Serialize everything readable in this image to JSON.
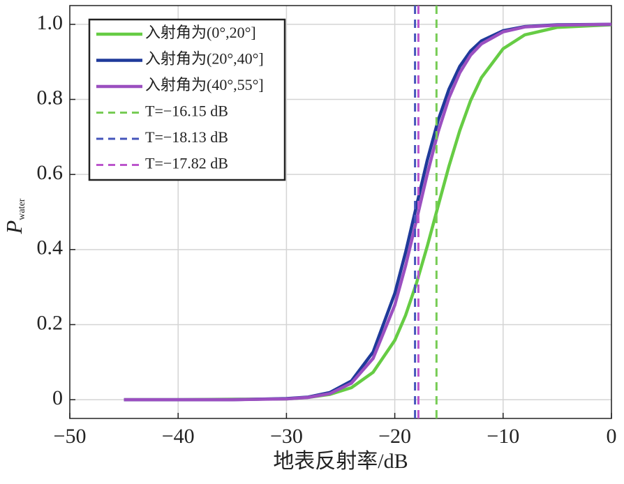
{
  "chart_data": {
    "type": "line",
    "xlabel": "地表反射率/dB",
    "ylabel": "P",
    "ylabel_subscript": "water",
    "x": [
      -45,
      -40,
      -35,
      -30,
      -28,
      -26,
      -24,
      -22,
      -20,
      -19,
      -18,
      -17,
      -16,
      -15,
      -14,
      -13,
      -12,
      -10,
      -8,
      -5,
      0
    ],
    "series": [
      {
        "name": "入射角为(0°,20°]",
        "color": "#66cc44",
        "values": [
          0,
          0,
          0.001,
          0.002,
          0.006,
          0.014,
          0.032,
          0.073,
          0.158,
          0.225,
          0.31,
          0.409,
          0.516,
          0.622,
          0.717,
          0.797,
          0.858,
          0.935,
          0.972,
          0.992,
          0.999
        ]
      },
      {
        "name": "入射角为(20°,40°]",
        "color": "#1f3a9a",
        "values": [
          0,
          0,
          0,
          0.003,
          0.007,
          0.019,
          0.05,
          0.127,
          0.283,
          0.393,
          0.516,
          0.638,
          0.744,
          0.827,
          0.888,
          0.929,
          0.956,
          0.983,
          0.994,
          0.999,
          1
        ]
      },
      {
        "name": "入射角为(40°,55°]",
        "color": "#9b4fc0",
        "values": [
          0,
          0,
          0,
          0.002,
          0.006,
          0.016,
          0.044,
          0.11,
          0.252,
          0.357,
          0.478,
          0.601,
          0.713,
          0.804,
          0.871,
          0.918,
          0.948,
          0.98,
          0.993,
          0.998,
          1
        ]
      }
    ],
    "vlines": [
      {
        "name": "T=−16.15 dB",
        "color": "#77cc55",
        "x": -16.15
      },
      {
        "name": "T=−18.13 dB",
        "color": "#4455bb",
        "x": -18.13
      },
      {
        "name": "T=−17.82 dB",
        "color": "#bb55cc",
        "x": -17.82
      }
    ],
    "xlim": [
      -50,
      0
    ],
    "xticks": [
      {
        "value": -50,
        "label": "−50"
      },
      {
        "value": -40,
        "label": "−40"
      },
      {
        "value": -30,
        "label": "−30"
      },
      {
        "value": -20,
        "label": "−20"
      },
      {
        "value": -10,
        "label": "−10"
      },
      0
    ],
    "ylim": [
      -0.05,
      1.05
    ],
    "yticks": [
      0,
      0.2,
      0.4,
      0.6,
      0.8,
      {
        "value": 1,
        "label": "1.0"
      }
    ],
    "grid": true,
    "legend": "upper-left"
  }
}
